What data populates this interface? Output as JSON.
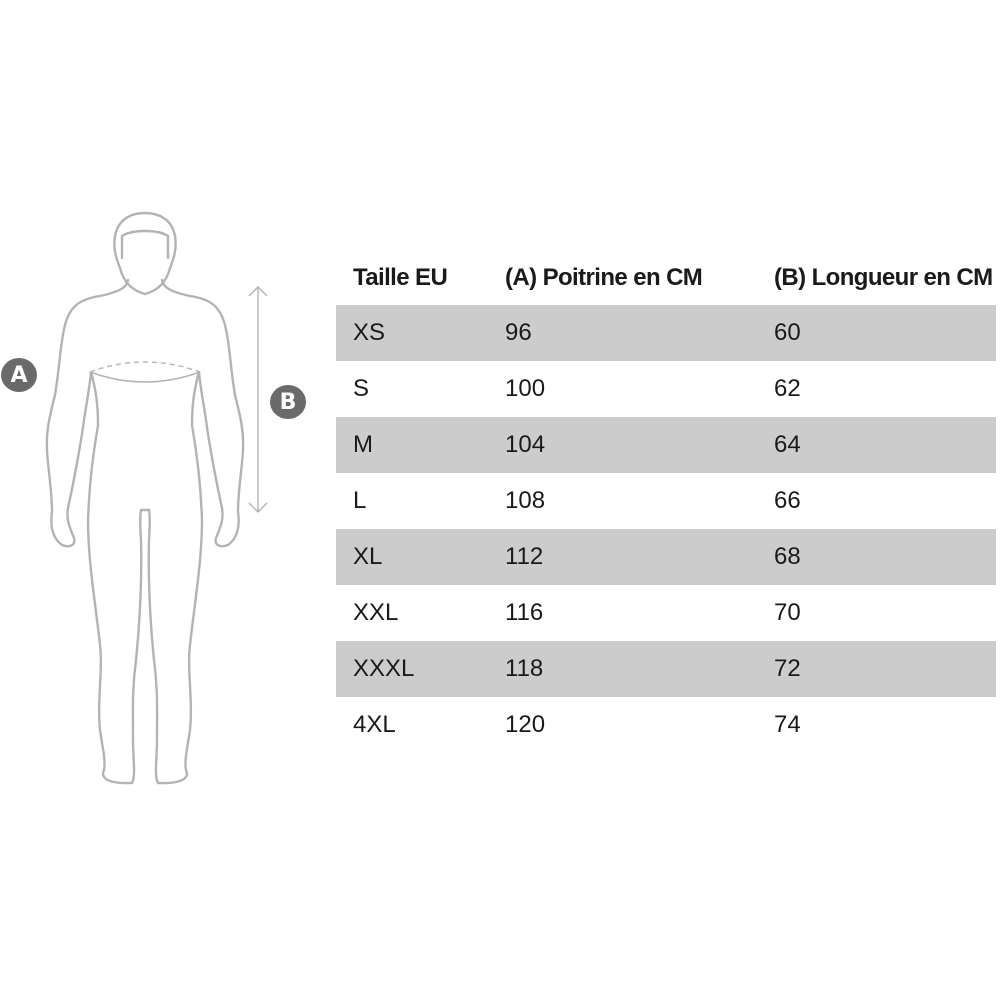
{
  "diagram": {
    "label_a": "A",
    "label_b": "B",
    "badge_color": "#6b6a68",
    "outline_color": "#b3b3b3"
  },
  "table": {
    "headers": [
      "Taille EU",
      "(A) Poitrine en CM",
      "(B) Longueur en CM"
    ],
    "row_shade_color": "#cccccc",
    "rows": [
      [
        "XS",
        "96",
        "60"
      ],
      [
        "S",
        "100",
        "62"
      ],
      [
        "M",
        "104",
        "64"
      ],
      [
        "L",
        "108",
        "66"
      ],
      [
        "XL",
        "112",
        "68"
      ],
      [
        "XXL",
        "116",
        "70"
      ],
      [
        "XXXL",
        "118",
        "72"
      ],
      [
        "4XL",
        "120",
        "74"
      ]
    ]
  }
}
